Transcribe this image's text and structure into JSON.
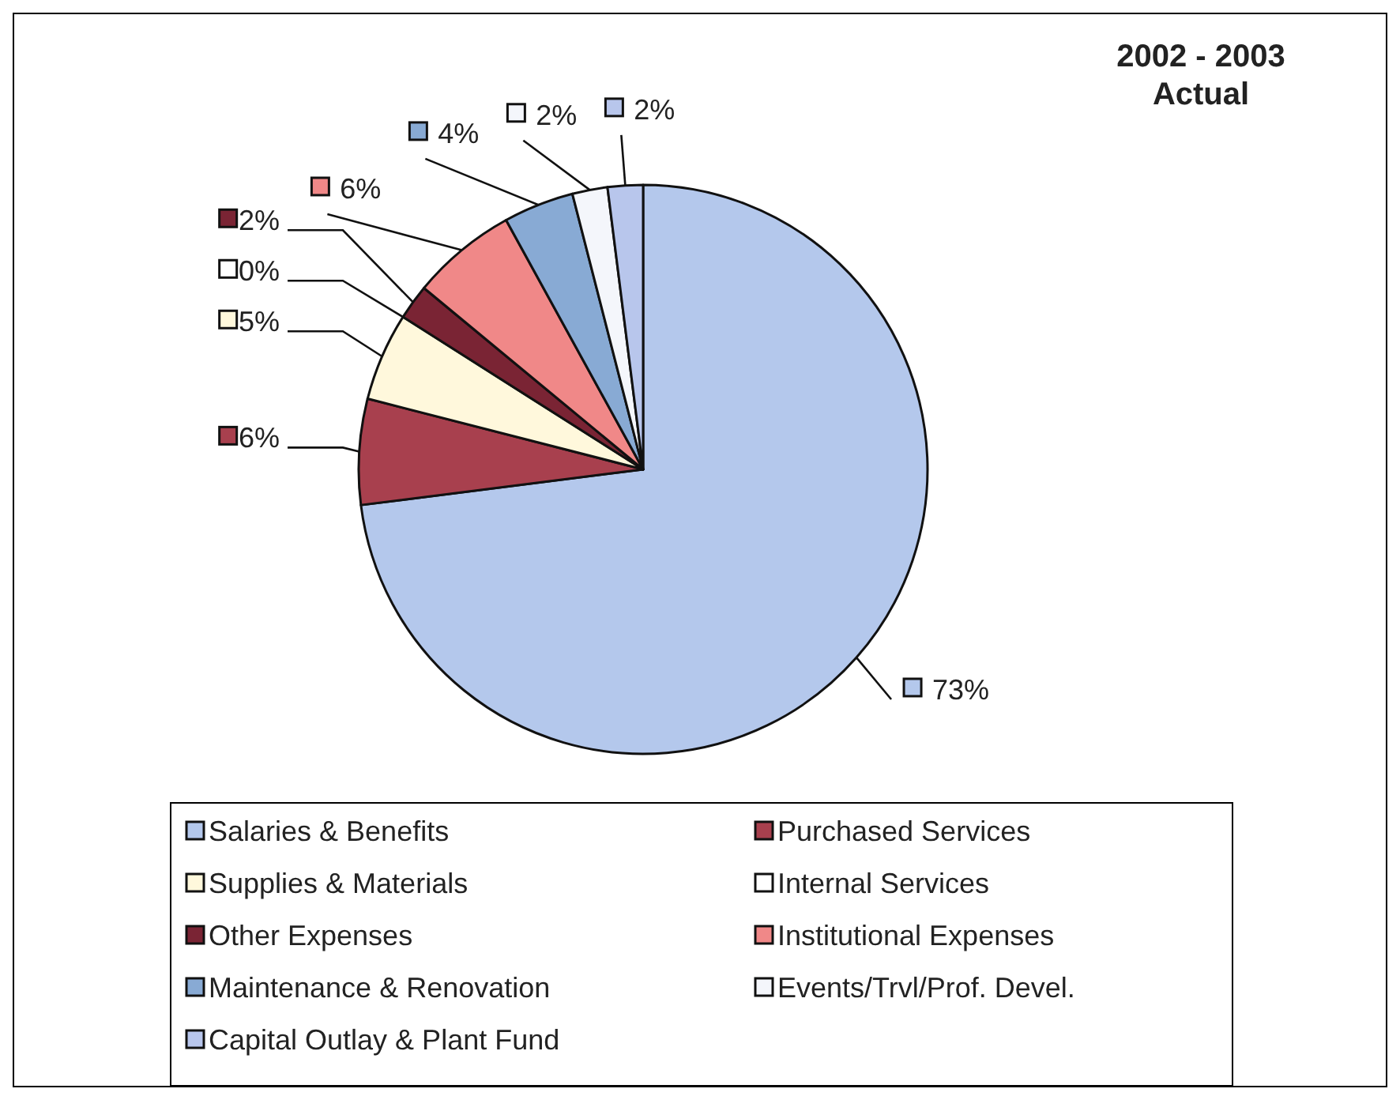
{
  "chart_data": {
    "type": "pie",
    "title": "2002 - 2003\nActual",
    "categories": [
      "Salaries & Benefits",
      "Purchased Services",
      "Supplies & Materials",
      "Internal Services",
      "Other Expenses",
      "Institutional Expenses",
      "Maintenance & Renovation",
      "Events/Trvl/Prof. Devel.",
      "Capital Outlay & Plant Fund"
    ],
    "values": [
      73,
      6,
      5,
      0,
      2,
      6,
      4,
      2,
      2
    ],
    "value_labels": [
      "73%",
      "6%",
      "5%",
      "0%",
      "2%",
      "6%",
      "4%",
      "2%",
      "2%"
    ],
    "colors": [
      "#b4c8ec",
      "#a8404e",
      "#fff8dc",
      "#ffffff",
      "#7a2434",
      "#f08888",
      "#88aad4",
      "#f4f6fb",
      "#b8c6ec"
    ],
    "legend": "bottom"
  }
}
